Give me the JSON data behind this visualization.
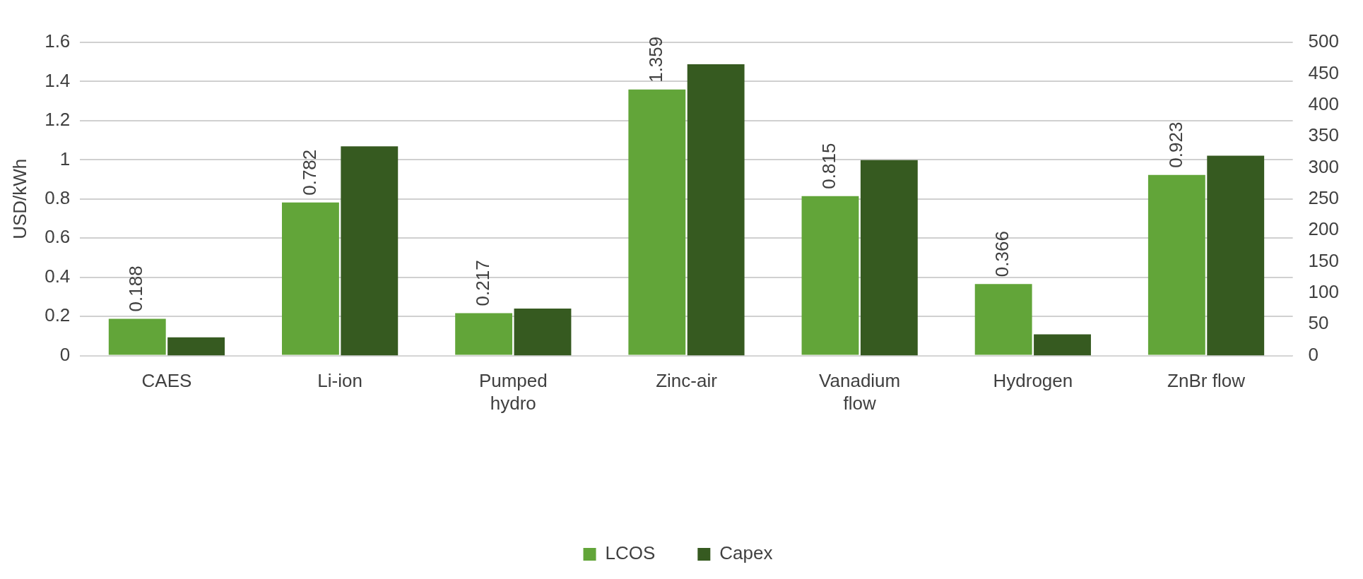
{
  "chart_data": {
    "type": "bar",
    "ylabel": "USD/kWh",
    "categories": [
      "CAES",
      "Li-ion",
      "Pumped hydro",
      "Zinc-air",
      "Vanadium flow",
      "Hydrogen",
      "ZnBr flow"
    ],
    "series": [
      {
        "name": "LCOS",
        "color": "#62a539",
        "values": [
          0.188,
          0.782,
          0.217,
          1.359,
          0.815,
          0.366,
          0.923
        ],
        "value_labels": [
          "0.188",
          "0.782",
          "0.217",
          "1.359",
          "0.815",
          "0.366",
          "0.923"
        ]
      },
      {
        "name": "Capex",
        "color": "#365a20",
        "axis": "y2",
        "values": [
          29,
          334,
          75,
          465,
          312,
          34,
          319
        ]
      }
    ],
    "ylim": [
      0,
      1.6
    ],
    "yticks": [
      0,
      0.2,
      0.4,
      0.6,
      0.8,
      1,
      1.2,
      1.4,
      1.6
    ],
    "y2lim": [
      0,
      500
    ],
    "y2ticks": [
      0,
      50,
      100,
      150,
      200,
      250,
      300,
      350,
      400,
      450,
      500
    ],
    "grid": "y",
    "legend": "bottom"
  }
}
